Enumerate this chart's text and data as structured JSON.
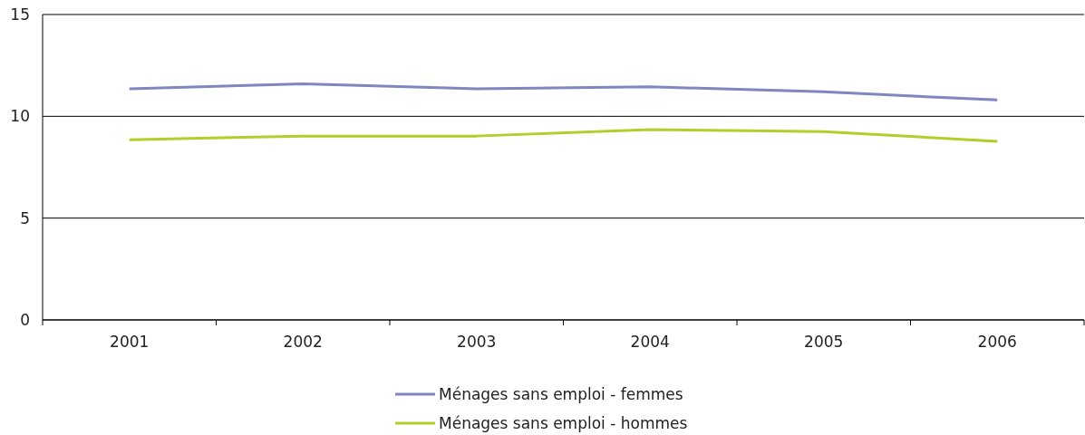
{
  "chart_data": {
    "type": "line",
    "categories": [
      "2001",
      "2002",
      "2003",
      "2004",
      "2005",
      "2006"
    ],
    "series": [
      {
        "name": "Ménages sans emploi - femmes",
        "color": "#7f86c1",
        "values": [
          11.35,
          11.6,
          11.35,
          11.45,
          11.2,
          10.8
        ]
      },
      {
        "name": "Ménages sans emploi - hommes",
        "color": "#b3cd2a",
        "values": [
          8.85,
          9.03,
          9.03,
          9.35,
          9.25,
          8.77
        ]
      }
    ],
    "ylim": [
      0,
      15
    ],
    "yticks": [
      0,
      5,
      10,
      15
    ],
    "grid": "y",
    "legend": "bottom",
    "marker": "none",
    "line_style": "solid"
  }
}
